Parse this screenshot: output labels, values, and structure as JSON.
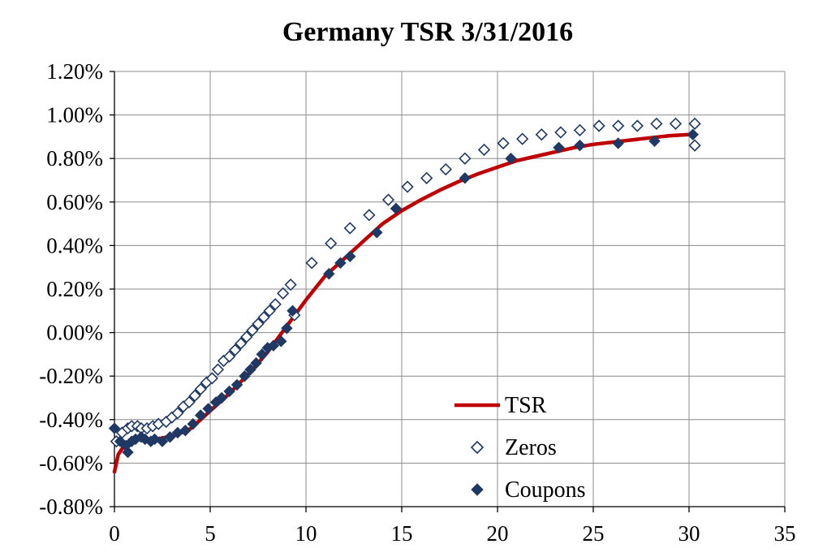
{
  "chart_data": {
    "type": "scatter",
    "title": "Germany TSR 3/31/2016",
    "xlabel": "",
    "ylabel": "",
    "xlim": [
      0,
      35
    ],
    "ylim": [
      -0.8,
      1.2
    ],
    "x_ticks": [
      0,
      5,
      10,
      15,
      20,
      25,
      30,
      35
    ],
    "x_tick_labels": [
      "0",
      "5",
      "10",
      "15",
      "20",
      "25",
      "30",
      "35"
    ],
    "y_ticks": [
      -0.8,
      -0.6,
      -0.4,
      -0.2,
      0.0,
      0.2,
      0.4,
      0.6,
      0.8,
      1.0,
      1.2
    ],
    "y_tick_labels": [
      "-0.80%",
      "-0.60%",
      "-0.40%",
      "-0.20%",
      "0.00%",
      "0.20%",
      "0.40%",
      "0.60%",
      "0.80%",
      "1.00%",
      "1.20%"
    ],
    "grid": true,
    "legend_position": "bottom-right",
    "series": [
      {
        "name": "TSR",
        "kind": "line",
        "color": "#c00000",
        "x": [
          0,
          0.2,
          0.5,
          0.8,
          1.0,
          1.5,
          2.0,
          2.5,
          3.0,
          3.5,
          4.0,
          4.5,
          5.0,
          5.5,
          6.0,
          6.5,
          7.0,
          7.5,
          8.0,
          8.5,
          9.0,
          9.5,
          10.0,
          11.0,
          12.0,
          13.0,
          14.0,
          15.0,
          16.0,
          17.0,
          18.0,
          19.0,
          20.0,
          21.0,
          22.0,
          23.0,
          24.0,
          25.0,
          26.0,
          27.0,
          28.0,
          29.0,
          30.0,
          30.3
        ],
        "y": [
          -0.64,
          -0.56,
          -0.52,
          -0.5,
          -0.495,
          -0.49,
          -0.49,
          -0.485,
          -0.475,
          -0.46,
          -0.44,
          -0.4,
          -0.36,
          -0.32,
          -0.28,
          -0.235,
          -0.19,
          -0.14,
          -0.09,
          -0.03,
          0.03,
          0.09,
          0.15,
          0.26,
          0.34,
          0.42,
          0.5,
          0.56,
          0.61,
          0.655,
          0.695,
          0.73,
          0.76,
          0.79,
          0.81,
          0.83,
          0.85,
          0.865,
          0.875,
          0.885,
          0.895,
          0.905,
          0.91,
          0.91
        ]
      },
      {
        "name": "Zeros",
        "kind": "marker",
        "marker": "diamond-open",
        "color": "#1f3864",
        "x": [
          0.1,
          0.4,
          0.7,
          0.9,
          1.2,
          1.4,
          1.7,
          2.0,
          2.3,
          2.7,
          3.0,
          3.3,
          3.6,
          3.9,
          4.2,
          4.5,
          4.8,
          5.1,
          5.4,
          5.7,
          6.0,
          6.3,
          6.6,
          6.9,
          7.2,
          7.5,
          7.8,
          8.1,
          8.4,
          8.8,
          9.2,
          9.4,
          10.3,
          11.3,
          12.3,
          13.3,
          14.3,
          15.3,
          16.3,
          17.3,
          18.3,
          19.3,
          20.3,
          21.3,
          22.3,
          23.3,
          24.3,
          25.3,
          26.3,
          27.3,
          28.3,
          29.3,
          30.3,
          30.3
        ],
        "y": [
          -0.5,
          -0.46,
          -0.44,
          -0.43,
          -0.43,
          -0.44,
          -0.44,
          -0.43,
          -0.42,
          -0.41,
          -0.39,
          -0.37,
          -0.34,
          -0.32,
          -0.29,
          -0.26,
          -0.23,
          -0.21,
          -0.17,
          -0.13,
          -0.11,
          -0.08,
          -0.05,
          -0.02,
          0.01,
          0.04,
          0.07,
          0.1,
          0.13,
          0.18,
          0.22,
          0.08,
          0.32,
          0.41,
          0.48,
          0.54,
          0.61,
          0.67,
          0.71,
          0.75,
          0.8,
          0.84,
          0.87,
          0.89,
          0.91,
          0.92,
          0.93,
          0.95,
          0.95,
          0.95,
          0.96,
          0.96,
          0.96,
          0.86
        ]
      },
      {
        "name": "Coupons",
        "kind": "marker",
        "marker": "diamond-filled",
        "color": "#1f3864",
        "x": [
          0.0,
          0.3,
          0.6,
          0.7,
          0.9,
          1.1,
          1.4,
          1.6,
          1.9,
          2.1,
          2.5,
          2.9,
          3.3,
          3.7,
          4.1,
          4.5,
          4.9,
          5.3,
          5.6,
          6.0,
          6.4,
          6.8,
          7.1,
          7.4,
          7.7,
          8.0,
          8.3,
          8.7,
          9.0,
          9.3,
          11.2,
          11.8,
          12.3,
          13.7,
          14.7,
          18.3,
          20.7,
          23.2,
          24.3,
          26.3,
          28.2,
          30.2
        ],
        "y": [
          -0.44,
          -0.5,
          -0.52,
          -0.55,
          -0.5,
          -0.49,
          -0.48,
          -0.49,
          -0.5,
          -0.49,
          -0.5,
          -0.48,
          -0.46,
          -0.45,
          -0.42,
          -0.38,
          -0.35,
          -0.32,
          -0.3,
          -0.27,
          -0.24,
          -0.2,
          -0.17,
          -0.14,
          -0.1,
          -0.07,
          -0.06,
          -0.04,
          0.02,
          0.1,
          0.27,
          0.32,
          0.35,
          0.46,
          0.57,
          0.71,
          0.8,
          0.85,
          0.86,
          0.87,
          0.88,
          0.91
        ]
      }
    ]
  }
}
